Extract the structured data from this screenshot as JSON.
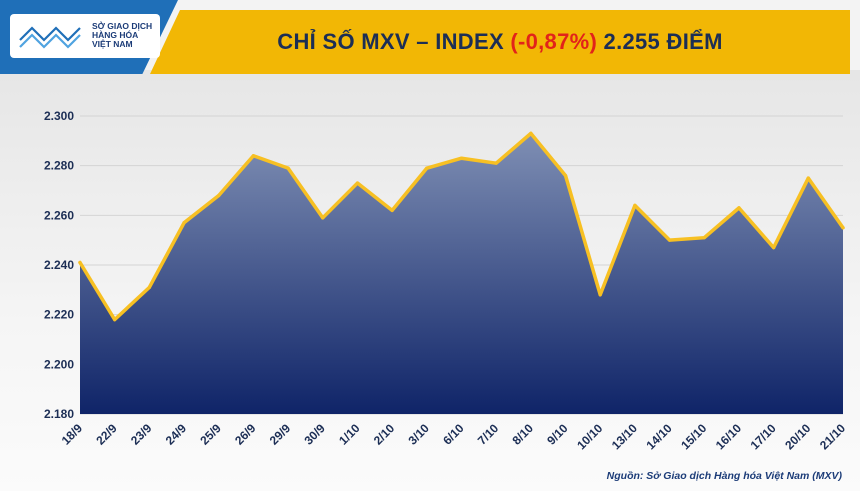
{
  "header": {
    "logo_line1": "SỞ GIAO DỊCH",
    "logo_line2": "HÀNG HÓA",
    "logo_line3": "VIỆT NAM",
    "title_prefix": "CHỈ SỐ MXV – INDEX ",
    "title_change": "(-0,87%)",
    "title_suffix": " 2.255 ĐIỂM"
  },
  "colors": {
    "accent_yellow": "#f2b705",
    "brand_blue": "#1f6fb8",
    "area_top": "#7f8fb4",
    "area_bottom": "#0f2468",
    "line": "#f7c023",
    "negative": "#e2231a"
  },
  "footer": {
    "source": "Nguồn: Sở Giao dịch Hàng hóa Việt Nam (MXV)"
  },
  "chart_data": {
    "type": "area",
    "title": "CHỈ SỐ MXV – INDEX (-0,87%) 2.255 ĐIỂM",
    "xlabel": "",
    "ylabel": "",
    "ylim": [
      2180,
      2300
    ],
    "yticks": [
      2180,
      2200,
      2220,
      2240,
      2260,
      2280,
      2300
    ],
    "ytick_labels": [
      "2.180",
      "2.200",
      "2.220",
      "2.240",
      "2.260",
      "2.280",
      "2.300"
    ],
    "grid": true,
    "categories": [
      "18/9",
      "22/9",
      "23/9",
      "24/9",
      "25/9",
      "26/9",
      "29/9",
      "30/9",
      "1/10",
      "2/10",
      "3/10",
      "6/10",
      "7/10",
      "8/10",
      "9/10",
      "10/10",
      "13/10",
      "14/10",
      "15/10",
      "16/10",
      "17/10",
      "20/10",
      "21/10"
    ],
    "values": [
      2241,
      2218,
      2231,
      2257,
      2268,
      2284,
      2279,
      2259,
      2273,
      2262,
      2279,
      2283,
      2281,
      2293,
      2276,
      2228,
      2264,
      2250,
      2251,
      2263,
      2247,
      2275,
      2255
    ]
  }
}
